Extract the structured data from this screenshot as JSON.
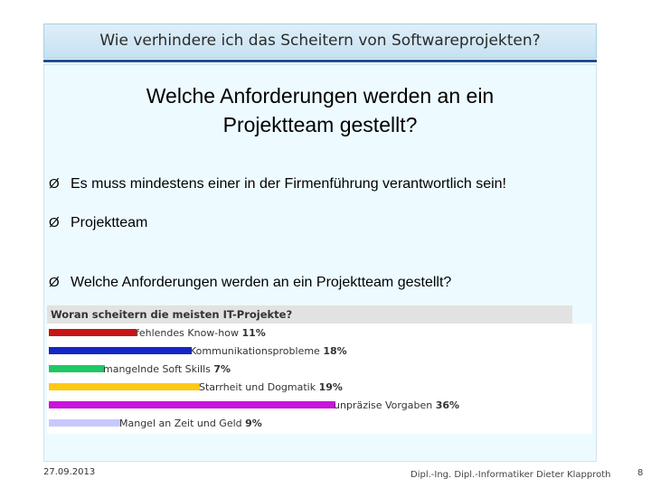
{
  "header": {
    "title": "Wie verhindere ich das Scheitern von Softwareprojekten?"
  },
  "slide": {
    "heading_line1": "Welche Anforderungen werden an ein",
    "heading_line2": "Projektteam gestellt?",
    "bullet_symbol": "Ø",
    "bullets": [
      "Es muss mindestens einer in der Firmenführung verantwortlich sein!",
      "Projektteam",
      "Welche Anforderungen werden an ein Projektteam gestellt?"
    ]
  },
  "chart_data": {
    "type": "bar",
    "orientation": "horizontal",
    "title": "Woran scheitern die meisten IT-Projekte?",
    "categories": [
      "fehlendes Know-how",
      "Kommunikationsprobleme",
      "mangelnde Soft Skills",
      "Starrheit und Dogmatik",
      "unpräzise Vorgaben",
      "Mangel an Zeit und Geld"
    ],
    "values": [
      11,
      18,
      7,
      19,
      36,
      9
    ],
    "value_labels": [
      "11%",
      "18%",
      "7%",
      "19%",
      "36%",
      "9%"
    ],
    "colors": [
      "#c81414",
      "#1426c8",
      "#1ec864",
      "#ffc814",
      "#c814dc",
      "#c8c8ff"
    ]
  },
  "footer": {
    "date": "27.09.2013",
    "author": "Dipl.-Ing. Dipl.-Informatiker Dieter Klapproth",
    "page": "8"
  }
}
